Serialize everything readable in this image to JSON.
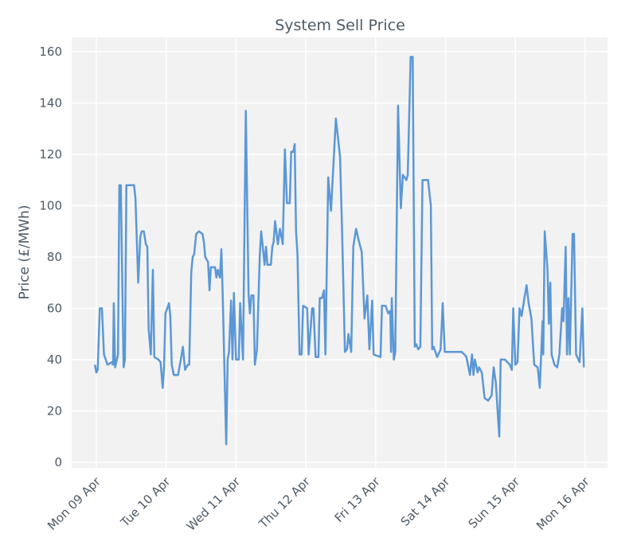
{
  "chart_data": {
    "type": "line",
    "title": "System Sell Price",
    "ylabel": "Price (£/MWh)",
    "x": [
      -0.02,
      0.0,
      0.02,
      0.05,
      0.08,
      0.11,
      0.16,
      0.22,
      0.24,
      0.25,
      0.27,
      0.31,
      0.33,
      0.35,
      0.39,
      0.41,
      0.43,
      0.54,
      0.56,
      0.6,
      0.63,
      0.65,
      0.68,
      0.71,
      0.73,
      0.75,
      0.78,
      0.81,
      0.83,
      0.89,
      0.92,
      0.95,
      0.97,
      0.99,
      1.04,
      1.06,
      1.08,
      1.11,
      1.17,
      1.21,
      1.24,
      1.27,
      1.31,
      1.33,
      1.36,
      1.38,
      1.4,
      1.43,
      1.47,
      1.52,
      1.54,
      1.56,
      1.6,
      1.62,
      1.64,
      1.7,
      1.72,
      1.74,
      1.77,
      1.79,
      1.81,
      1.86,
      1.88,
      1.9,
      1.93,
      1.95,
      1.97,
      2.0,
      2.04,
      2.06,
      2.1,
      2.14,
      2.18,
      2.2,
      2.22,
      2.25,
      2.27,
      2.3,
      2.34,
      2.36,
      2.38,
      2.41,
      2.43,
      2.45,
      2.5,
      2.52,
      2.54,
      2.56,
      2.6,
      2.63,
      2.67,
      2.7,
      2.73,
      2.77,
      2.79,
      2.82,
      2.84,
      2.86,
      2.88,
      2.91,
      2.94,
      2.96,
      3.02,
      3.04,
      3.09,
      3.11,
      3.14,
      3.18,
      3.2,
      3.23,
      3.26,
      3.28,
      3.32,
      3.36,
      3.43,
      3.49,
      3.52,
      3.56,
      3.59,
      3.61,
      3.65,
      3.68,
      3.72,
      3.76,
      3.8,
      3.84,
      3.88,
      3.91,
      3.95,
      3.97,
      4.07,
      4.09,
      4.14,
      4.18,
      4.21,
      4.22,
      4.23,
      4.26,
      4.28,
      4.32,
      4.36,
      4.39,
      4.44,
      4.46,
      4.5,
      4.53,
      4.56,
      4.58,
      4.61,
      4.64,
      4.67,
      4.75,
      4.79,
      4.81,
      4.83,
      4.88,
      4.93,
      4.96,
      4.99,
      5.23,
      5.27,
      5.3,
      5.35,
      5.38,
      5.4,
      5.42,
      5.46,
      5.48,
      5.52,
      5.56,
      5.61,
      5.66,
      5.69,
      5.72,
      5.77,
      5.79,
      5.85,
      5.92,
      5.95,
      5.97,
      6.0,
      6.03,
      6.06,
      6.09,
      6.13,
      6.16,
      6.19,
      6.23,
      6.27,
      6.32,
      6.35,
      6.39,
      6.4,
      6.42,
      6.46,
      6.48,
      6.5,
      6.52,
      6.56,
      6.6,
      6.63,
      6.67,
      6.69,
      6.72,
      6.74,
      6.76,
      6.78,
      6.82,
      6.84,
      6.87,
      6.92,
      6.96,
      6.98
    ],
    "series": [
      {
        "name": "System Sell Price",
        "color": "#5b97d6",
        "values": [
          38,
          35,
          36,
          60,
          60,
          42,
          38,
          39,
          38,
          62,
          37,
          42,
          108,
          108,
          37,
          40,
          108,
          108,
          103,
          70,
          88,
          90,
          90,
          85,
          84,
          52,
          42,
          75,
          41,
          40,
          39,
          29,
          37,
          58,
          62,
          57,
          38,
          34,
          34,
          40,
          45,
          36,
          38,
          38,
          74,
          80,
          81,
          89,
          90,
          89,
          86,
          80,
          78,
          67,
          76,
          76,
          72,
          75,
          72,
          83,
          65,
          7,
          40,
          43,
          63,
          40,
          66,
          40,
          40,
          62,
          40,
          137,
          65,
          58,
          65,
          65,
          38,
          44,
          80,
          90,
          85,
          77,
          84,
          77,
          77,
          84,
          86,
          94,
          85,
          91,
          85,
          122,
          101,
          101,
          121,
          121,
          124,
          90,
          81,
          42,
          42,
          61,
          60,
          42,
          60,
          60,
          41,
          41,
          64,
          64,
          67,
          42,
          111,
          98,
          134,
          119,
          89,
          43,
          44,
          50,
          43,
          84,
          91,
          86,
          82,
          56,
          65,
          44,
          63,
          42,
          41,
          61,
          61,
          58,
          59,
          43,
          64,
          40,
          43,
          139,
          99,
          112,
          110,
          112,
          158,
          158,
          45,
          46,
          44,
          45,
          110,
          110,
          100,
          44,
          45,
          41,
          44,
          62,
          43,
          43,
          42,
          41,
          34,
          42,
          34,
          40,
          35,
          37,
          35,
          25,
          24,
          26,
          37,
          31,
          10,
          40,
          40,
          38,
          36,
          60,
          38,
          39,
          60,
          57,
          64,
          69,
          62,
          56,
          38,
          37,
          29,
          55,
          42,
          90,
          75,
          54,
          70,
          42,
          38,
          37,
          42,
          60,
          55,
          84,
          42,
          64,
          42,
          89,
          89,
          42,
          39,
          60,
          37
        ]
      }
    ],
    "xlim": [
      -0.353,
      7.32
    ],
    "xticks": [
      {
        "value": 0,
        "label": "Mon 09 Apr"
      },
      {
        "value": 1,
        "label": "Tue 10 Apr"
      },
      {
        "value": 2,
        "label": "Wed 11 Apr"
      },
      {
        "value": 3,
        "label": "Thu 12 Apr"
      },
      {
        "value": 4,
        "label": "Fri 13 Apr"
      },
      {
        "value": 5,
        "label": "Sat 14 Apr"
      },
      {
        "value": 6,
        "label": "Sun 15 Apr"
      },
      {
        "value": 7,
        "label": "Mon 16 Apr"
      }
    ],
    "ylim": [
      -2.2,
      165.6
    ],
    "yticks": [
      0,
      20,
      40,
      60,
      80,
      100,
      120,
      140,
      160
    ],
    "grid": true
  }
}
